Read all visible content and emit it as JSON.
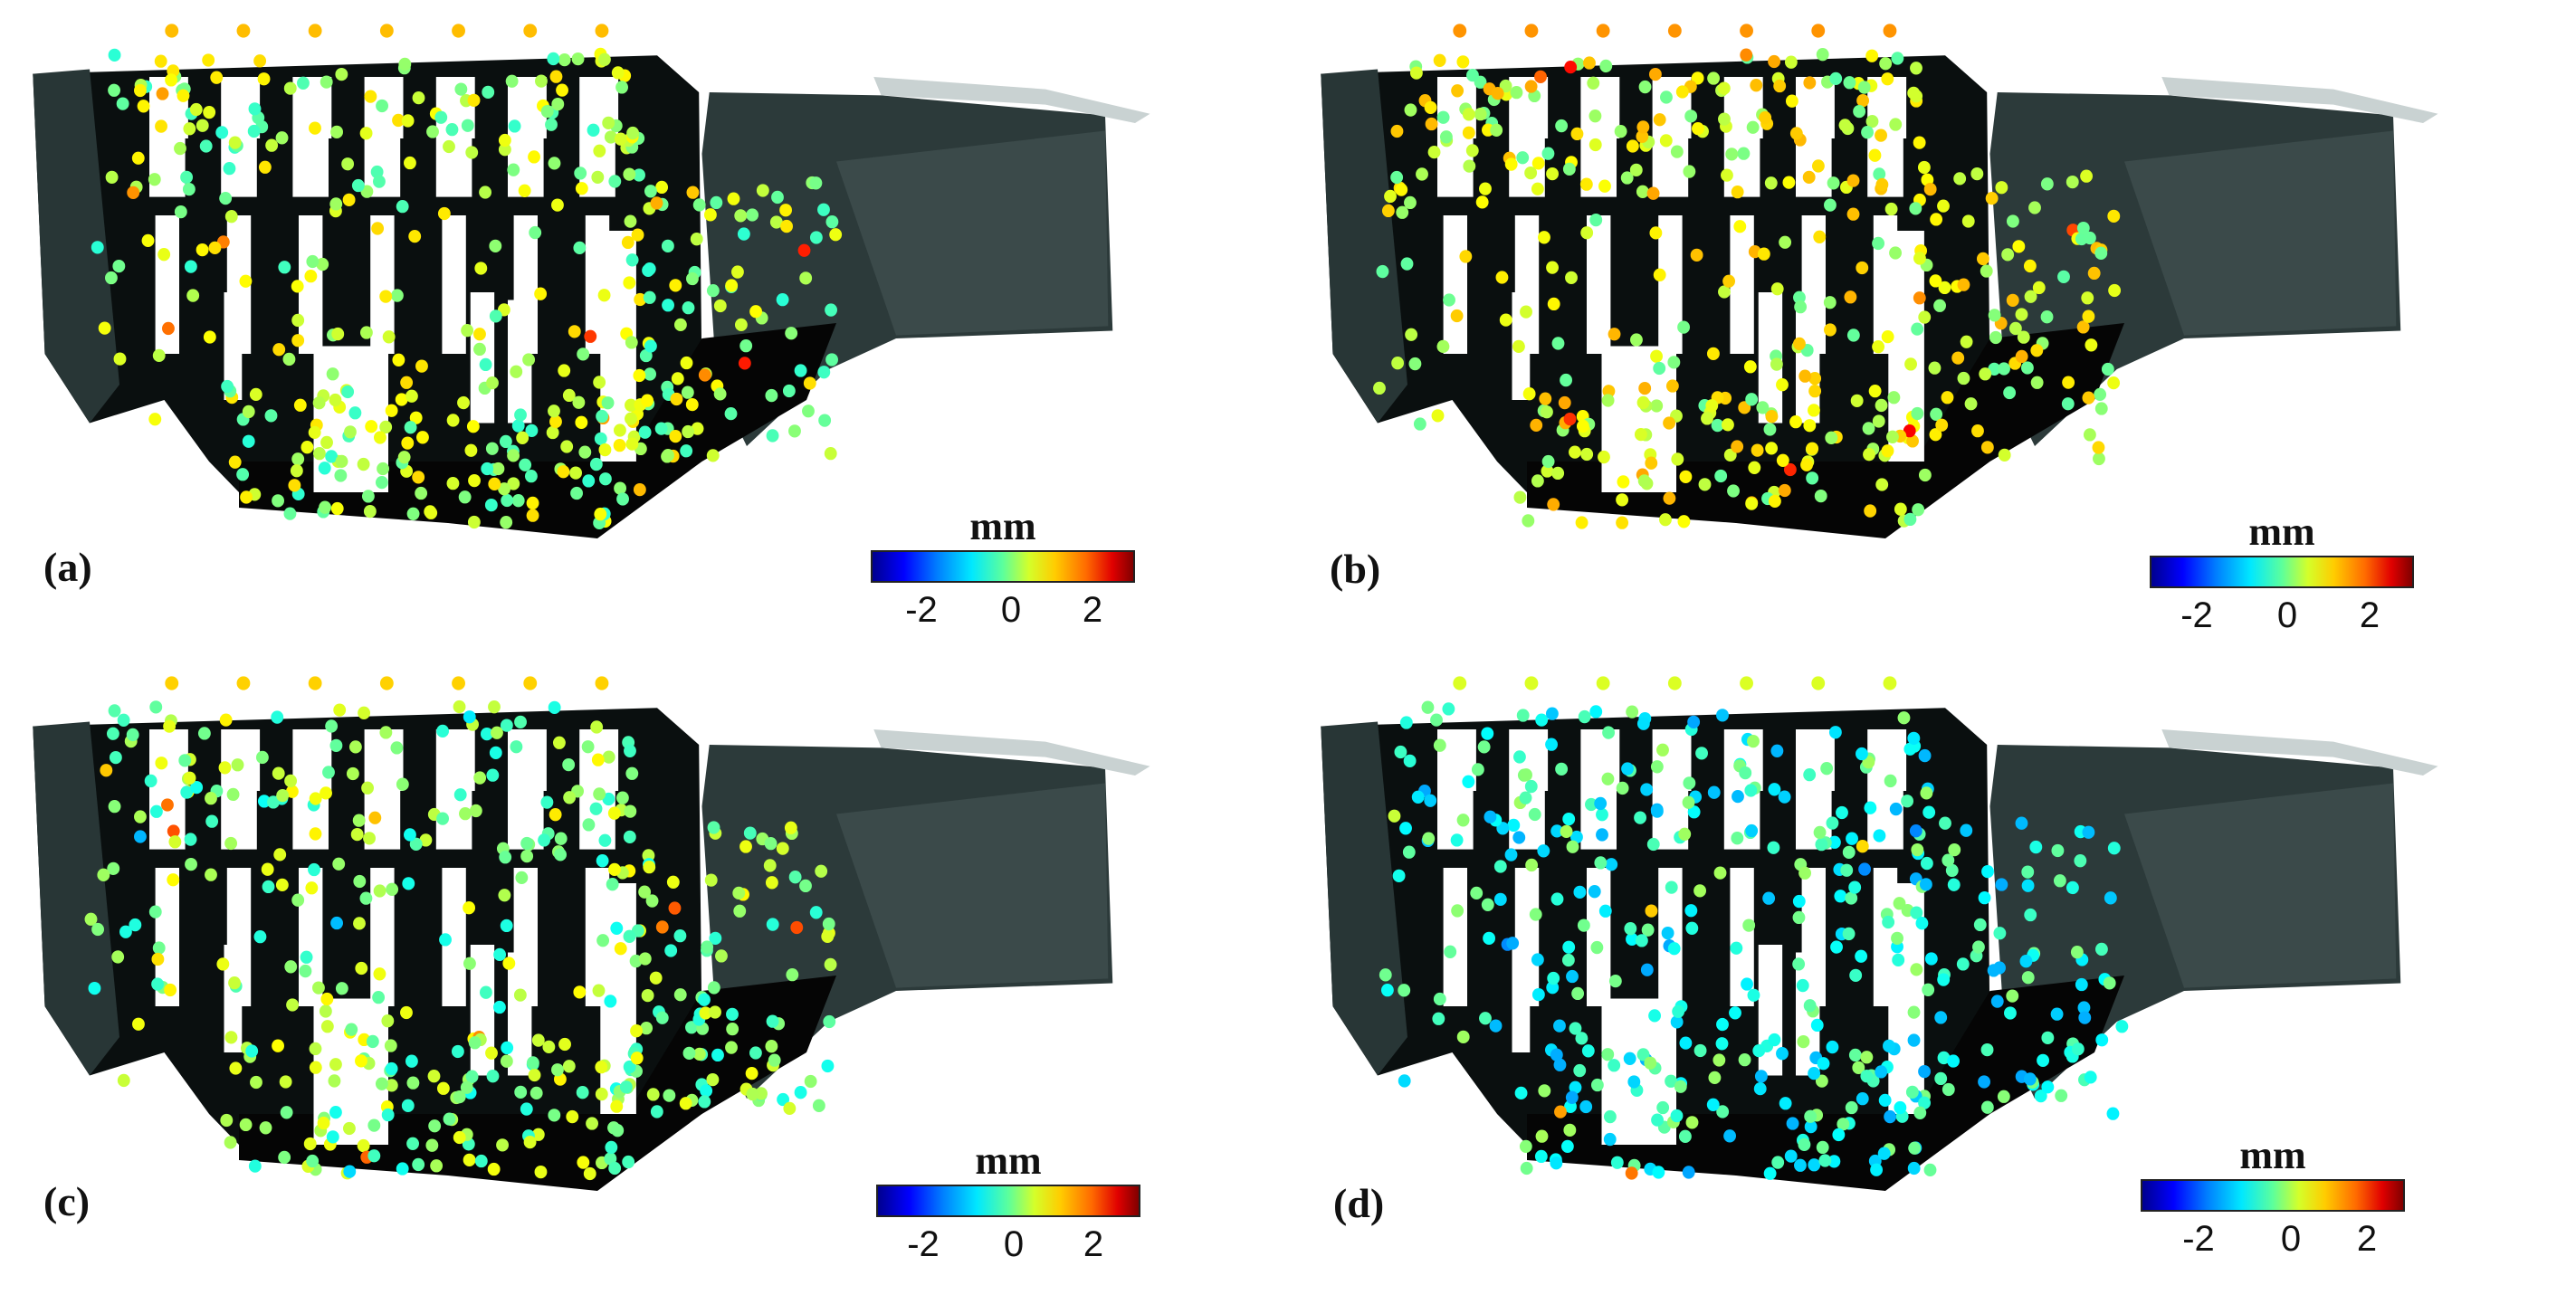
{
  "colorbar": {
    "unit": "mm",
    "ticks": [
      "-2",
      "0",
      "2"
    ],
    "range": [
      -3,
      3
    ],
    "colormap": "jet"
  },
  "panels": [
    {
      "label": "(a)",
      "point_bias": 0.15
    },
    {
      "label": "(b)",
      "point_bias": 0.35
    },
    {
      "label": "(c)",
      "point_bias": 0.05
    },
    {
      "label": "(d)",
      "point_bias": -0.35
    }
  ]
}
